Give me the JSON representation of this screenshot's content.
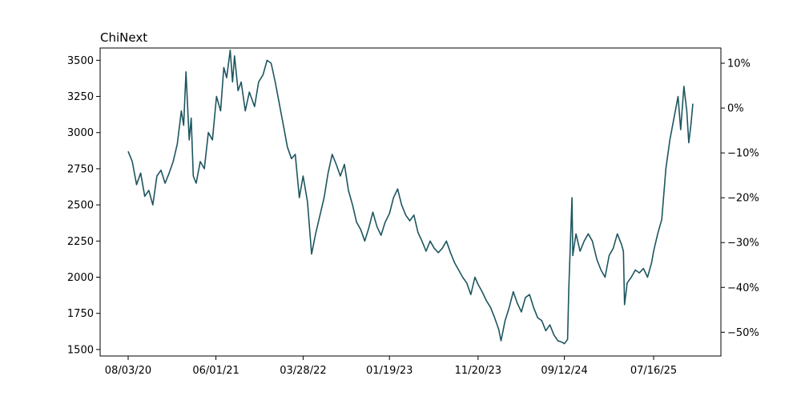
{
  "chart_data": {
    "type": "line",
    "title": "ChiNext",
    "xlabel": "",
    "ylabel": "",
    "x_tick_labels": [
      "08/03/20",
      "06/01/21",
      "03/28/22",
      "01/19/23",
      "11/20/23",
      "09/12/24",
      "07/16/25"
    ],
    "y_left_ticks": [
      1500,
      1750,
      2000,
      2250,
      2500,
      2750,
      3000,
      3250,
      3500
    ],
    "y_left_lim": [
      1455,
      3585
    ],
    "y_right_tick_labels": [
      "10%",
      "0%",
      "−10%",
      "−20%",
      "−30%",
      "−40%",
      "−50%"
    ],
    "y_right_ticks": [
      10,
      0,
      -10,
      -20,
      -30,
      -40,
      -50
    ],
    "y_right_lim": [
      -55.3,
      13.4
    ],
    "x_range": [
      "2020-08-03",
      "2025-11-28"
    ],
    "line_color": "#1d5660",
    "grid": false,
    "series": [
      {
        "values": [
          [
            "2020-08-03",
            2870
          ],
          [
            "2020-08-17",
            2800
          ],
          [
            "2020-09-01",
            2640
          ],
          [
            "2020-09-15",
            2720
          ],
          [
            "2020-09-29",
            2560
          ],
          [
            "2020-10-13",
            2600
          ],
          [
            "2020-10-27",
            2500
          ],
          [
            "2020-11-10",
            2700
          ],
          [
            "2020-11-24",
            2740
          ],
          [
            "2020-12-08",
            2650
          ],
          [
            "2020-12-22",
            2720
          ],
          [
            "2021-01-05",
            2800
          ],
          [
            "2021-01-19",
            2920
          ],
          [
            "2021-02-02",
            3150
          ],
          [
            "2021-02-10",
            3050
          ],
          [
            "2021-02-18",
            3420
          ],
          [
            "2021-03-01",
            2950
          ],
          [
            "2021-03-08",
            3100
          ],
          [
            "2021-03-15",
            2700
          ],
          [
            "2021-03-25",
            2650
          ],
          [
            "2021-04-08",
            2800
          ],
          [
            "2021-04-22",
            2750
          ],
          [
            "2021-05-06",
            3000
          ],
          [
            "2021-05-20",
            2950
          ],
          [
            "2021-06-03",
            3250
          ],
          [
            "2021-06-17",
            3150
          ],
          [
            "2021-06-28",
            3450
          ],
          [
            "2021-07-08",
            3380
          ],
          [
            "2021-07-20",
            3570
          ],
          [
            "2021-07-28",
            3350
          ],
          [
            "2021-08-04",
            3530
          ],
          [
            "2021-08-16",
            3290
          ],
          [
            "2021-08-27",
            3350
          ],
          [
            "2021-09-10",
            3150
          ],
          [
            "2021-09-24",
            3280
          ],
          [
            "2021-10-12",
            3180
          ],
          [
            "2021-10-26",
            3350
          ],
          [
            "2021-11-10",
            3400
          ],
          [
            "2021-11-24",
            3500
          ],
          [
            "2021-12-08",
            3480
          ],
          [
            "2021-12-22",
            3350
          ],
          [
            "2022-01-05",
            3200
          ],
          [
            "2022-01-19",
            3050
          ],
          [
            "2022-02-02",
            2900
          ],
          [
            "2022-02-16",
            2820
          ],
          [
            "2022-03-01",
            2850
          ],
          [
            "2022-03-15",
            2550
          ],
          [
            "2022-03-28",
            2700
          ],
          [
            "2022-04-12",
            2520
          ],
          [
            "2022-04-26",
            2160
          ],
          [
            "2022-05-10",
            2300
          ],
          [
            "2022-05-24",
            2420
          ],
          [
            "2022-06-08",
            2550
          ],
          [
            "2022-06-22",
            2720
          ],
          [
            "2022-07-06",
            2850
          ],
          [
            "2022-07-20",
            2780
          ],
          [
            "2022-08-03",
            2700
          ],
          [
            "2022-08-17",
            2780
          ],
          [
            "2022-08-31",
            2600
          ],
          [
            "2022-09-14",
            2500
          ],
          [
            "2022-09-28",
            2380
          ],
          [
            "2022-10-12",
            2330
          ],
          [
            "2022-10-26",
            2250
          ],
          [
            "2022-11-09",
            2340
          ],
          [
            "2022-11-23",
            2450
          ],
          [
            "2022-12-07",
            2350
          ],
          [
            "2022-12-21",
            2290
          ],
          [
            "2023-01-04",
            2380
          ],
          [
            "2023-01-19",
            2440
          ],
          [
            "2023-02-02",
            2550
          ],
          [
            "2023-02-16",
            2610
          ],
          [
            "2023-03-02",
            2500
          ],
          [
            "2023-03-16",
            2430
          ],
          [
            "2023-03-30",
            2390
          ],
          [
            "2023-04-13",
            2430
          ],
          [
            "2023-04-27",
            2310
          ],
          [
            "2023-05-11",
            2250
          ],
          [
            "2023-05-25",
            2180
          ],
          [
            "2023-06-08",
            2250
          ],
          [
            "2023-06-22",
            2200
          ],
          [
            "2023-07-06",
            2170
          ],
          [
            "2023-07-20",
            2200
          ],
          [
            "2023-08-03",
            2250
          ],
          [
            "2023-08-17",
            2170
          ],
          [
            "2023-08-31",
            2100
          ],
          [
            "2023-09-14",
            2050
          ],
          [
            "2023-09-28",
            2000
          ],
          [
            "2023-10-12",
            1960
          ],
          [
            "2023-10-26",
            1880
          ],
          [
            "2023-11-09",
            2000
          ],
          [
            "2023-11-20",
            1950
          ],
          [
            "2023-12-04",
            1900
          ],
          [
            "2023-12-18",
            1840
          ],
          [
            "2024-01-02",
            1790
          ],
          [
            "2024-01-16",
            1720
          ],
          [
            "2024-01-30",
            1640
          ],
          [
            "2024-02-07",
            1560
          ],
          [
            "2024-02-21",
            1700
          ],
          [
            "2024-03-06",
            1790
          ],
          [
            "2024-03-20",
            1900
          ],
          [
            "2024-04-03",
            1820
          ],
          [
            "2024-04-17",
            1760
          ],
          [
            "2024-05-01",
            1860
          ],
          [
            "2024-05-15",
            1880
          ],
          [
            "2024-05-29",
            1790
          ],
          [
            "2024-06-12",
            1720
          ],
          [
            "2024-06-26",
            1700
          ],
          [
            "2024-07-10",
            1630
          ],
          [
            "2024-07-24",
            1670
          ],
          [
            "2024-08-07",
            1600
          ],
          [
            "2024-08-21",
            1560
          ],
          [
            "2024-09-04",
            1550
          ],
          [
            "2024-09-12",
            1540
          ],
          [
            "2024-09-23",
            1570
          ],
          [
            "2024-09-27",
            1920
          ],
          [
            "2024-10-08",
            2550
          ],
          [
            "2024-10-11",
            2150
          ],
          [
            "2024-10-22",
            2300
          ],
          [
            "2024-11-05",
            2180
          ],
          [
            "2024-11-19",
            2250
          ],
          [
            "2024-12-03",
            2300
          ],
          [
            "2024-12-17",
            2250
          ],
          [
            "2025-01-02",
            2120
          ],
          [
            "2025-01-16",
            2050
          ],
          [
            "2025-01-30",
            2000
          ],
          [
            "2025-02-13",
            2150
          ],
          [
            "2025-02-27",
            2200
          ],
          [
            "2025-03-13",
            2300
          ],
          [
            "2025-03-27",
            2230
          ],
          [
            "2025-04-03",
            2180
          ],
          [
            "2025-04-07",
            1810
          ],
          [
            "2025-04-16",
            1960
          ],
          [
            "2025-04-30",
            2000
          ],
          [
            "2025-05-14",
            2050
          ],
          [
            "2025-05-28",
            2030
          ],
          [
            "2025-06-11",
            2060
          ],
          [
            "2025-06-25",
            2000
          ],
          [
            "2025-07-09",
            2100
          ],
          [
            "2025-07-16",
            2180
          ],
          [
            "2025-07-30",
            2300
          ],
          [
            "2025-08-13",
            2400
          ],
          [
            "2025-08-27",
            2750
          ],
          [
            "2025-09-10",
            2950
          ],
          [
            "2025-09-24",
            3100
          ],
          [
            "2025-10-08",
            3250
          ],
          [
            "2025-10-17",
            3020
          ],
          [
            "2025-10-28",
            3320
          ],
          [
            "2025-11-07",
            3150
          ],
          [
            "2025-11-14",
            2930
          ],
          [
            "2025-11-21",
            3050
          ],
          [
            "2025-11-28",
            3200
          ]
        ]
      }
    ]
  }
}
